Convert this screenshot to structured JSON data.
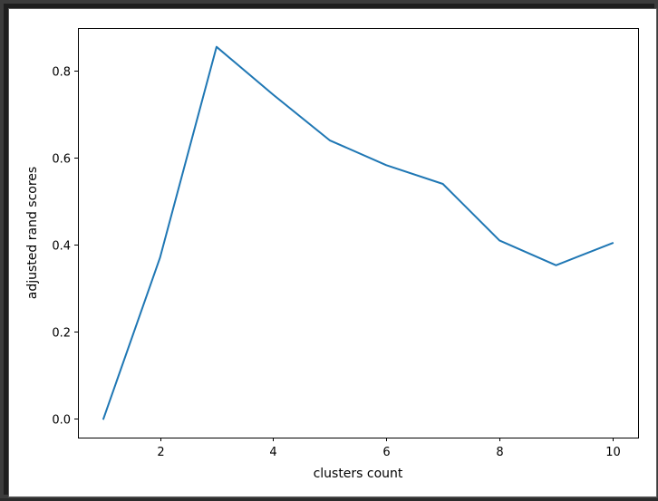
{
  "chart_data": {
    "type": "line",
    "title": "",
    "xlabel": "clusters count",
    "ylabel": "adjusted rand scores",
    "x": [
      1,
      2,
      3,
      4,
      5,
      6,
      7,
      8,
      9,
      10
    ],
    "series": [
      {
        "values": [
          0.0,
          0.37,
          0.855,
          0.745,
          0.64,
          0.583,
          0.54,
          0.41,
          0.353,
          0.404
        ]
      }
    ],
    "xlim": [
      0.55,
      10.45
    ],
    "ylim": [
      -0.043,
      0.898
    ],
    "xticks": [
      2,
      4,
      6,
      8,
      10
    ],
    "yticks": [
      0.0,
      0.2,
      0.4,
      0.6,
      0.8
    ],
    "xtick_labels": [
      "2",
      "4",
      "6",
      "8",
      "10"
    ],
    "ytick_labels": [
      "0.0",
      "0.2",
      "0.4",
      "0.6",
      "0.8"
    ],
    "grid": false,
    "line_color": "#1f77b4"
  }
}
